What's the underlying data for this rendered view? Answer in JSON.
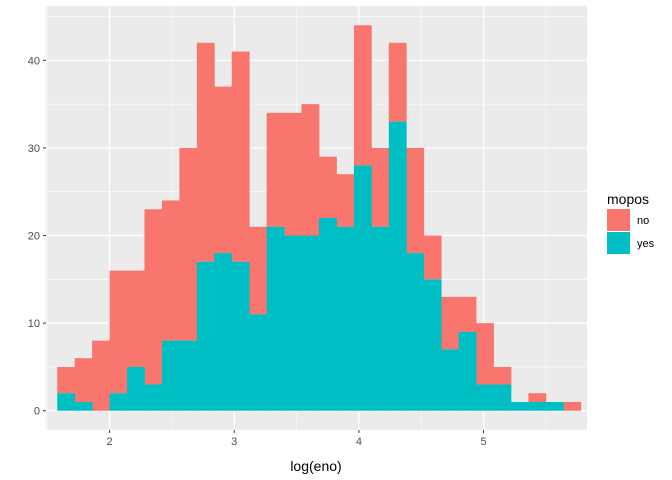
{
  "chart_data": {
    "type": "bar",
    "subtype": "stacked-histogram",
    "xlabel": "log(eno)",
    "ylabel": "",
    "xlim": [
      1.49,
      5.83
    ],
    "ylim": [
      -2.2,
      46.2
    ],
    "x_ticks": [
      2,
      3,
      4,
      5
    ],
    "x_tick_labels": [
      "2",
      "3",
      "4",
      "5"
    ],
    "y_ticks": [
      0,
      10,
      20,
      30,
      40
    ],
    "y_tick_labels": [
      "0",
      "10",
      "20",
      "30",
      "40"
    ],
    "grid": true,
    "background": "#ebebeb",
    "legend": {
      "title": "mopos",
      "position": "right",
      "entries": [
        {
          "label": "no",
          "color": "#f8766d"
        },
        {
          "label": "yes",
          "color": "#00bfc4"
        }
      ]
    },
    "bin_width": 0.14,
    "bin_start": 1.58,
    "series": [
      {
        "name": "yes",
        "color": "#00bfc4",
        "values": [
          2,
          1,
          0,
          2,
          5,
          3,
          8,
          8,
          17,
          18,
          17,
          11,
          21,
          20,
          20,
          22,
          21,
          28,
          21,
          33,
          18,
          15,
          7,
          9,
          3,
          3,
          1,
          1,
          1,
          0
        ]
      },
      {
        "name": "no",
        "color": "#f8766d",
        "values": [
          3,
          5,
          8,
          14,
          11,
          20,
          16,
          22,
          25,
          19,
          24,
          10,
          13,
          14,
          15,
          7,
          6,
          16,
          9,
          9,
          12,
          5,
          6,
          4,
          7,
          2,
          0,
          1,
          0,
          1
        ]
      }
    ],
    "totals": [
      5,
      6,
      8,
      16,
      16,
      23,
      24,
      30,
      42,
      37,
      41,
      21,
      34,
      34,
      35,
      29,
      27,
      44,
      30,
      42,
      30,
      20,
      13,
      13,
      10,
      5,
      1,
      2,
      1,
      1
    ]
  }
}
